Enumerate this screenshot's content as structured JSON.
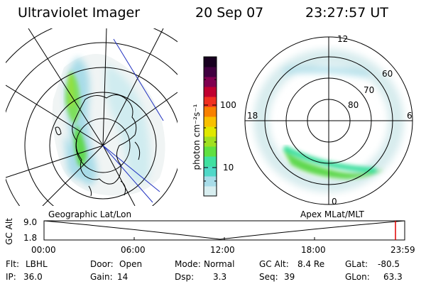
{
  "header": {
    "title": "Ultraviolet Imager",
    "date": "20 Sep 07",
    "time": "23:27:57 UT"
  },
  "geo_panel": {
    "caption": "Geographic Lat/Lon"
  },
  "apex_panel": {
    "caption": "Apex MLat/MLT",
    "mlt_labels": [
      "12",
      "18",
      "6",
      "0"
    ],
    "lat_labels": [
      "60",
      "70",
      "80"
    ]
  },
  "colorbar": {
    "unit": "photon cm⁻²s⁻¹",
    "tick_labels": [
      "100",
      "10"
    ]
  },
  "altitude_plot": {
    "ylabel": "GC Alt",
    "y_ticks": [
      "9.0",
      "1.8"
    ],
    "x_ticks": [
      "00:00",
      "06:00",
      "12:00",
      "18:00",
      "23:59"
    ]
  },
  "info": {
    "row1": [
      {
        "label": "Flt:",
        "value": "LBHL"
      },
      {
        "label": "Door:",
        "value": "Open"
      },
      {
        "label": "Mode:",
        "value": "Normal"
      },
      {
        "label": "GC Alt:",
        "value": "8.4 Re"
      },
      {
        "label": "GLat:",
        "value": "-80.5"
      }
    ],
    "row2": [
      {
        "label": "IP:",
        "value": "36.0"
      },
      {
        "label": "Gain:",
        "value": "14"
      },
      {
        "label": "Dsp:",
        "value": "3.3"
      },
      {
        "label": "Seq:",
        "value": "39"
      },
      {
        "label": "GLon:",
        "value": "63.3"
      }
    ]
  },
  "colors": {
    "cb": [
      "#d8eef0",
      "#a8dce8",
      "#50d8c8",
      "#40e0a0",
      "#60e040",
      "#a0e020",
      "#e0e800",
      "#f8c000",
      "#f88000",
      "#f03020",
      "#c00030",
      "#800050",
      "#400040",
      "#180020"
    ]
  }
}
